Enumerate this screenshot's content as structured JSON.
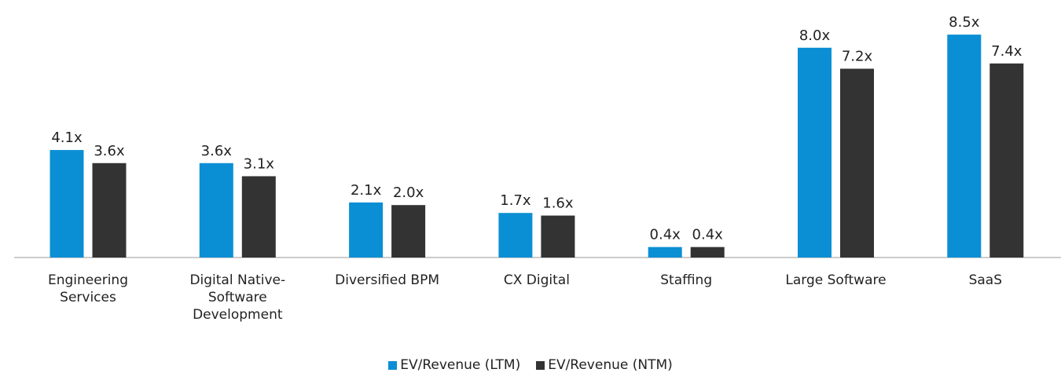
{
  "chart_data": {
    "type": "bar",
    "categories": [
      "Engineering Services",
      "Digital Native-Software Development",
      "Diversified BPM",
      "CX Digital",
      "Staffing",
      "Large Software",
      "SaaS"
    ],
    "series": [
      {
        "name": "EV/Revenue (LTM)",
        "color": "#0a8fd4",
        "values": [
          4.1,
          3.6,
          2.1,
          1.7,
          0.4,
          8.0,
          8.5
        ],
        "value_labels": [
          "4.1x",
          "3.6x",
          "2.1x",
          "1.7x",
          "0.4x",
          "8.0x",
          "8.5x"
        ]
      },
      {
        "name": "EV/Revenue (NTM)",
        "color": "#333333",
        "values": [
          3.6,
          3.1,
          2.0,
          1.6,
          0.4,
          7.2,
          7.4
        ],
        "value_labels": [
          "3.6x",
          "3.1x",
          "2.0x",
          "1.6x",
          "0.4x",
          "7.2x",
          "7.4x"
        ]
      }
    ]
  }
}
